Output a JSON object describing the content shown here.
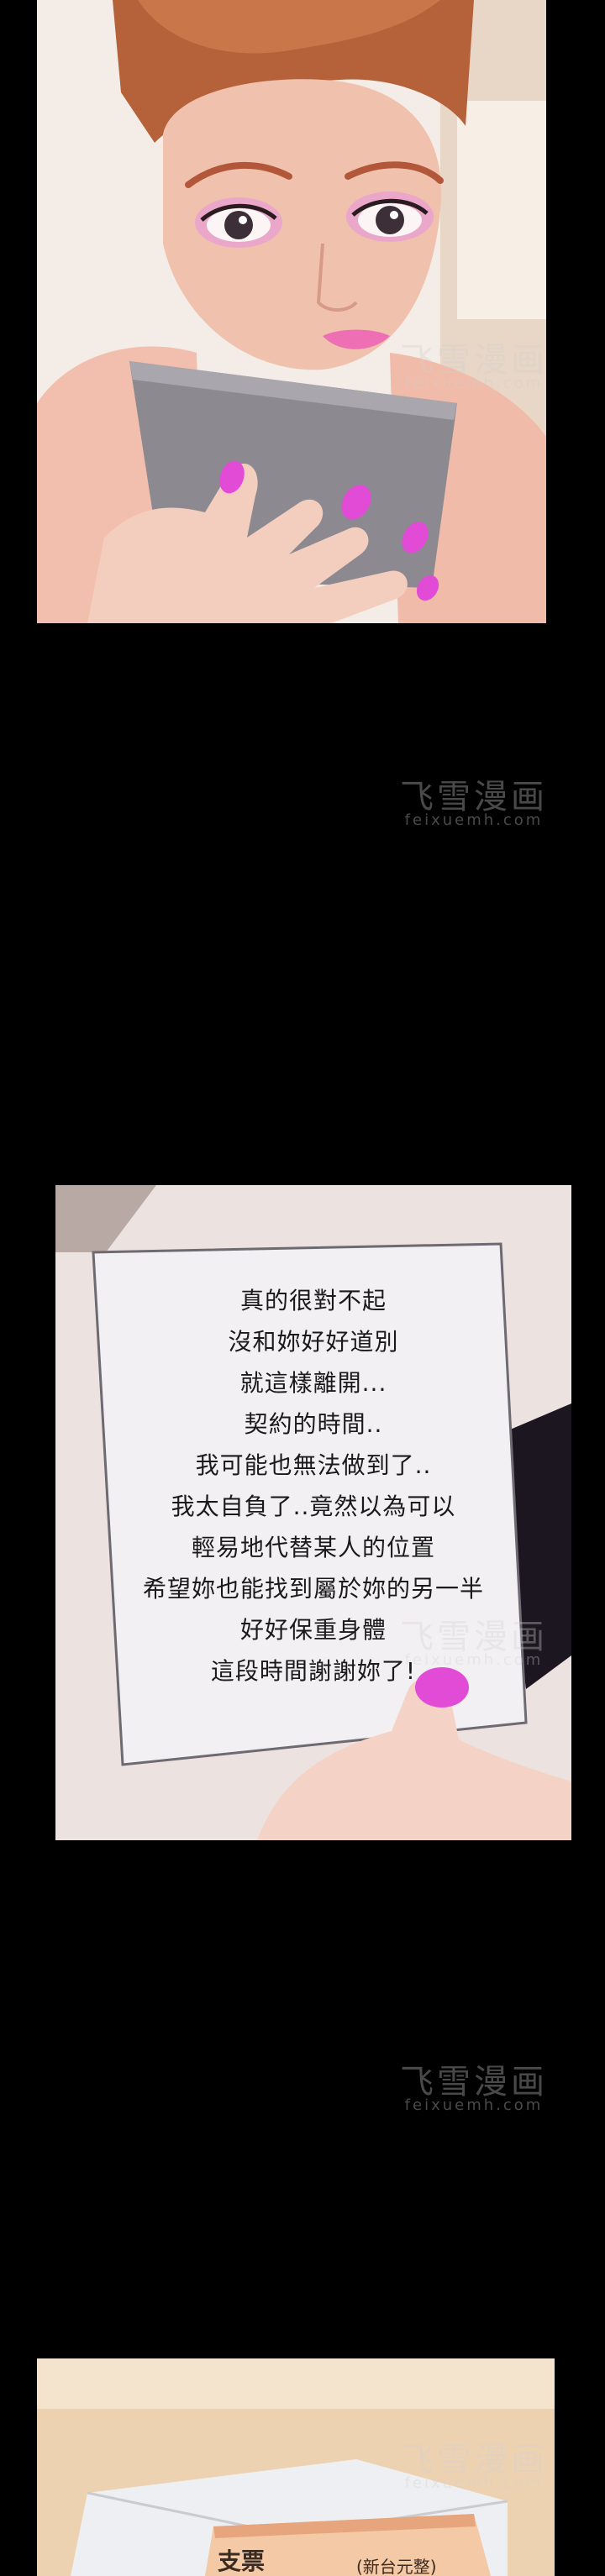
{
  "note": {
    "lines": [
      "真的很對不起",
      "沒和妳好好道別",
      "就這樣離開...",
      "契約的時間..",
      "我可能也無法做到了..",
      "我太自負了..竟然以為可以",
      "輕易地代替某人的位置",
      "希望妳也能找到屬於妳的另一半",
      "好好保重身體",
      "這段時間謝謝妳了!"
    ]
  },
  "watermark": {
    "title": "飞雪漫画",
    "subtitle": "feixuemh.com"
  },
  "cheque": {
    "label": "支票",
    "amount_hint": "(新台元整)"
  },
  "colors": {
    "background": "#000000",
    "nail_polish": "#e24bd6",
    "note_paper": "#f3f0f3",
    "watermark": "#d2d2d2"
  }
}
